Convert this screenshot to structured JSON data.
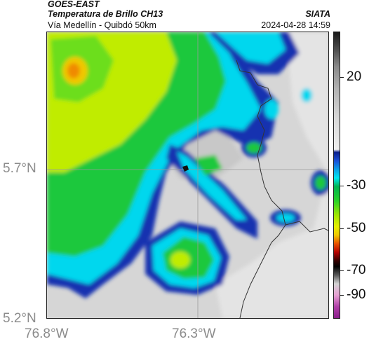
{
  "header": {
    "satellite": "GOES-EAST",
    "product": "Temperatura de Brillo CH13",
    "region": "Vía Medellín - Quibdó 50km",
    "source": "SIATA",
    "timestamp": "2024-04-28 14:59"
  },
  "axes": {
    "lat_labels": [
      "5.7°N",
      "5.2°N"
    ],
    "lon_labels": [
      "76.8°W",
      "76.3°W"
    ]
  },
  "colorbar": {
    "labels": [
      "20",
      "-30",
      "-50",
      "-70",
      "-90"
    ]
  },
  "colors": {
    "cold_blue": "#1230b0",
    "cyan": "#00d7ee",
    "green": "#1fc83c",
    "yellow_green": "#c0ec00",
    "orange": "#f08a00",
    "warm_gray": "#d6d6d6",
    "boundary": "#333333"
  }
}
